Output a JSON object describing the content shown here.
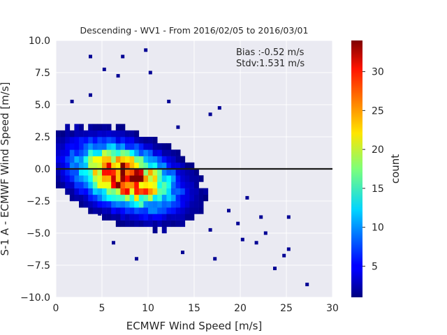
{
  "chart_data": {
    "type": "heatmap",
    "title": "Descending - WV1 - From 2016/02/05 to 2016/03/01",
    "xlabel": "ECMWF Wind Speed [m/s]",
    "ylabel": "S-1 A - ECMWF Wind Speed [m/s]",
    "xlim": [
      0,
      30
    ],
    "ylim": [
      -10,
      10
    ],
    "xticks": [
      0,
      5,
      10,
      15,
      20,
      25,
      30
    ],
    "xtick_labels": [
      "0",
      "5",
      "10",
      "15",
      "20",
      "25",
      "30"
    ],
    "yticks": [
      -10,
      -7.5,
      -5,
      -2.5,
      0,
      2.5,
      5,
      7.5,
      10
    ],
    "ytick_labels": [
      "−10.0",
      "−7.5",
      "−5.0",
      "−2.5",
      "0.0",
      "2.5",
      "5.0",
      "7.5",
      "10.0"
    ],
    "grid": true,
    "zero_line": 0,
    "colormap": "jet",
    "colorbar": {
      "label": "count",
      "min": 1,
      "max": 34,
      "ticks": [
        5,
        10,
        15,
        20,
        25,
        30
      ],
      "tick_labels": [
        "5",
        "10",
        "15",
        "20",
        "25",
        "30"
      ]
    },
    "annotations": [
      "Bias :-0.52 m/s",
      "Stdv:1.531 m/s"
    ],
    "density_model": {
      "bin_size": 0.5,
      "center_x": 7.5,
      "center_y": -0.6,
      "peak_count": 33,
      "slope": -0.18,
      "sigma_x": 3.4,
      "sigma_y": 1.45
    },
    "outliers": [
      [
        3.75,
        8.75
      ],
      [
        7.25,
        8.75
      ],
      [
        9.75,
        9.25
      ],
      [
        10.25,
        7.5
      ],
      [
        5.25,
        7.75
      ],
      [
        6.75,
        7.25
      ],
      [
        3.75,
        5.75
      ],
      [
        1.75,
        5.25
      ],
      [
        13.25,
        3.25
      ],
      [
        17.75,
        4.75
      ],
      [
        16.75,
        4.25
      ],
      [
        12.25,
        5.25
      ],
      [
        21.75,
        -5.75
      ],
      [
        23.75,
        -7.75
      ],
      [
        24.75,
        -6.75
      ],
      [
        25.25,
        -6.25
      ],
      [
        27.25,
        -9.0
      ],
      [
        20.25,
        -5.5
      ],
      [
        19.75,
        -4.25
      ],
      [
        22.75,
        -5.0
      ],
      [
        8.75,
        -7.0
      ],
      [
        13.75,
        -6.5
      ],
      [
        17.25,
        -7.0
      ],
      [
        4.75,
        -3.5
      ],
      [
        22.25,
        -3.75
      ],
      [
        25.25,
        -3.75
      ],
      [
        18.75,
        -3.25
      ],
      [
        6.25,
        -5.75
      ],
      [
        16.75,
        -4.75
      ],
      [
        20.75,
        -2.25
      ]
    ]
  }
}
